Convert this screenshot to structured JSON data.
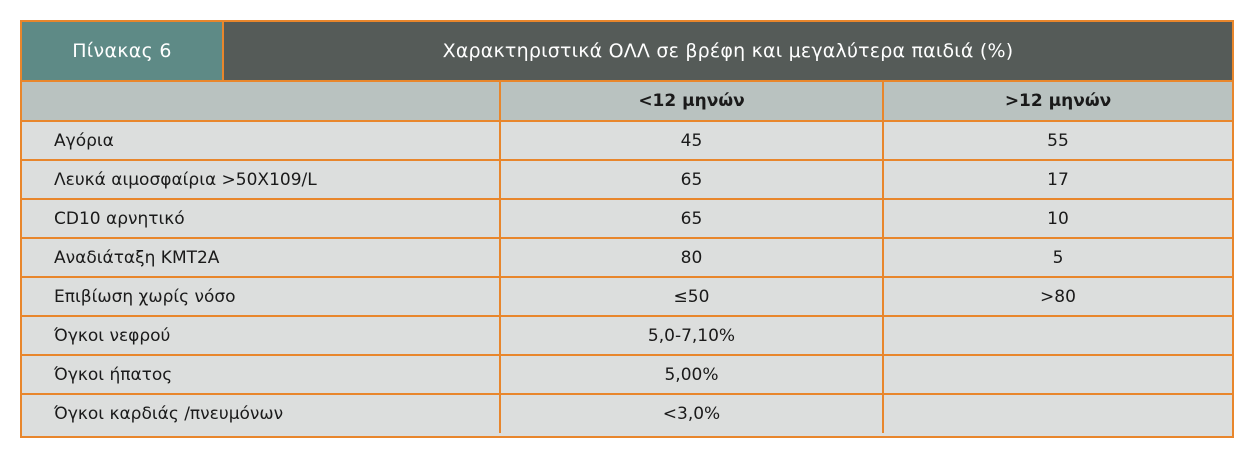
{
  "table": {
    "number": "Πίνακας 6",
    "title": "Χαρακτηριστικά ΟΛΛ σε βρέφη και μεγαλύτερα παιδιά (%)",
    "columns": [
      "",
      "<12 μηνών",
      ">12 μηνών"
    ],
    "rows": [
      {
        "label": "Αγόρια",
        "under12": "45",
        "over12": "55"
      },
      {
        "label": "Λευκά αιμοσφαίρια >50X109/L",
        "under12": "65",
        "over12": "17"
      },
      {
        "label": "CD10 αρνητικό",
        "under12": "65",
        "over12": "10"
      },
      {
        "label": "Αναδιάταξη KMT2A",
        "under12": "80",
        "over12": "5"
      },
      {
        "label": "Επιβίωση χωρίς νόσο",
        "under12": "≤50",
        "over12": ">80"
      },
      {
        "label": "Όγκοι νεφρού",
        "under12": "5,0-7,10%",
        "over12": ""
      },
      {
        "label": "Όγκοι ήπατος",
        "under12": "5,00%",
        "over12": ""
      },
      {
        "label": "Όγκοι καρδιάς /πνευμόνων",
        "under12": "<3,0%",
        "over12": ""
      }
    ]
  },
  "colors": {
    "border": "#e8862c",
    "number_cell": "#5e8a86",
    "title_cell": "#555b58",
    "header_row": "#b9c2c0",
    "body_row": "#dcdedd"
  }
}
